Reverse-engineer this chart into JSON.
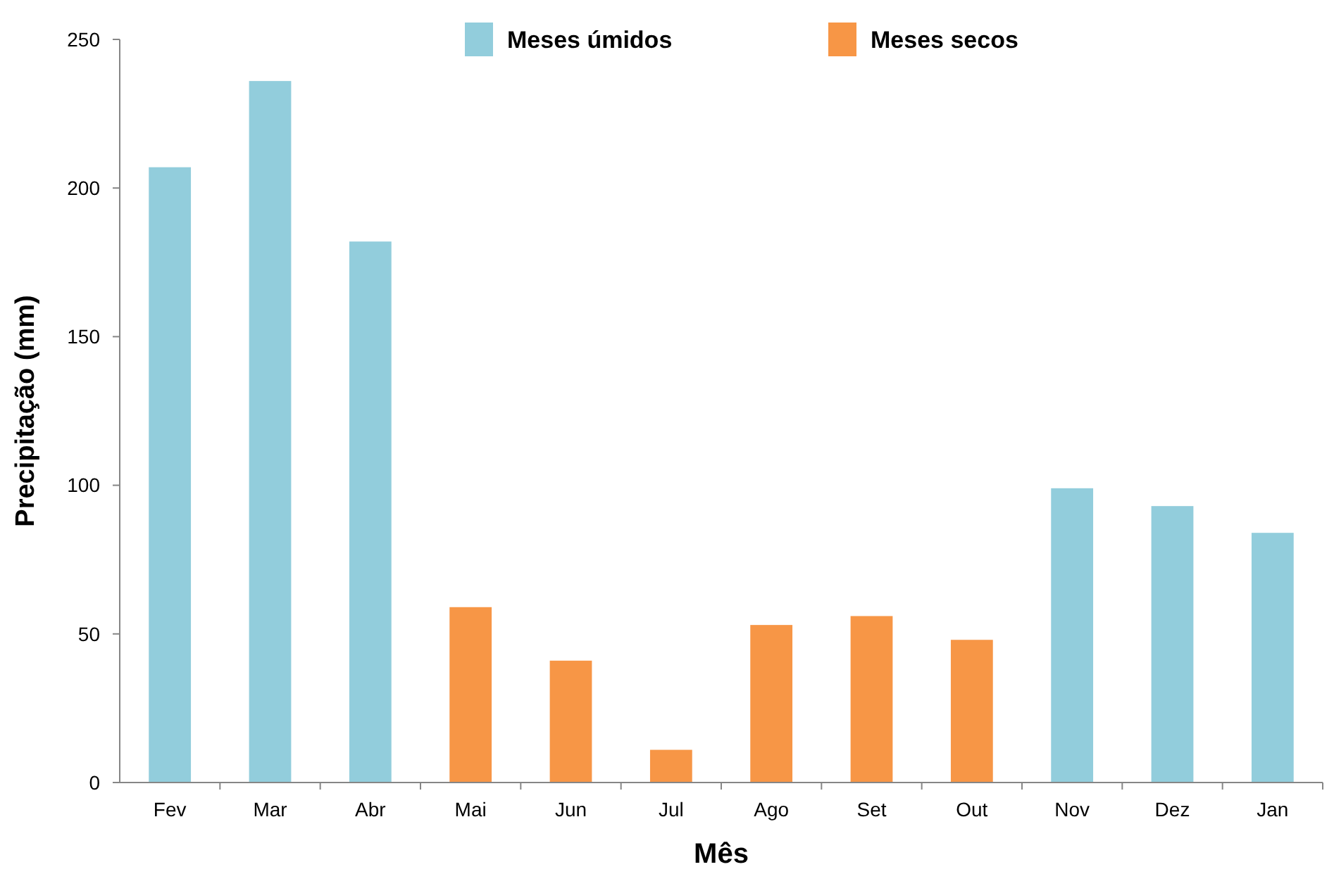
{
  "chart_data": {
    "type": "bar",
    "xlabel": "Mês",
    "ylabel": "Precipitação (mm)",
    "categories": [
      "Fev",
      "Mar",
      "Abr",
      "Mai",
      "Jun",
      "Jul",
      "Ago",
      "Set",
      "Out",
      "Nov",
      "Dez",
      "Jan"
    ],
    "series": [
      {
        "name": "Meses úmidos",
        "color": "#92cddc",
        "values": [
          207,
          236,
          182,
          null,
          null,
          null,
          null,
          null,
          null,
          99,
          93,
          84
        ]
      },
      {
        "name": "Meses secos",
        "color": "#f79646",
        "values": [
          null,
          null,
          null,
          59,
          41,
          11,
          53,
          56,
          48,
          null,
          null,
          null
        ]
      }
    ],
    "ylim": [
      0,
      250
    ],
    "yticks": [
      0,
      50,
      100,
      150,
      200,
      250
    ],
    "legend": "top",
    "stacked": true
  }
}
